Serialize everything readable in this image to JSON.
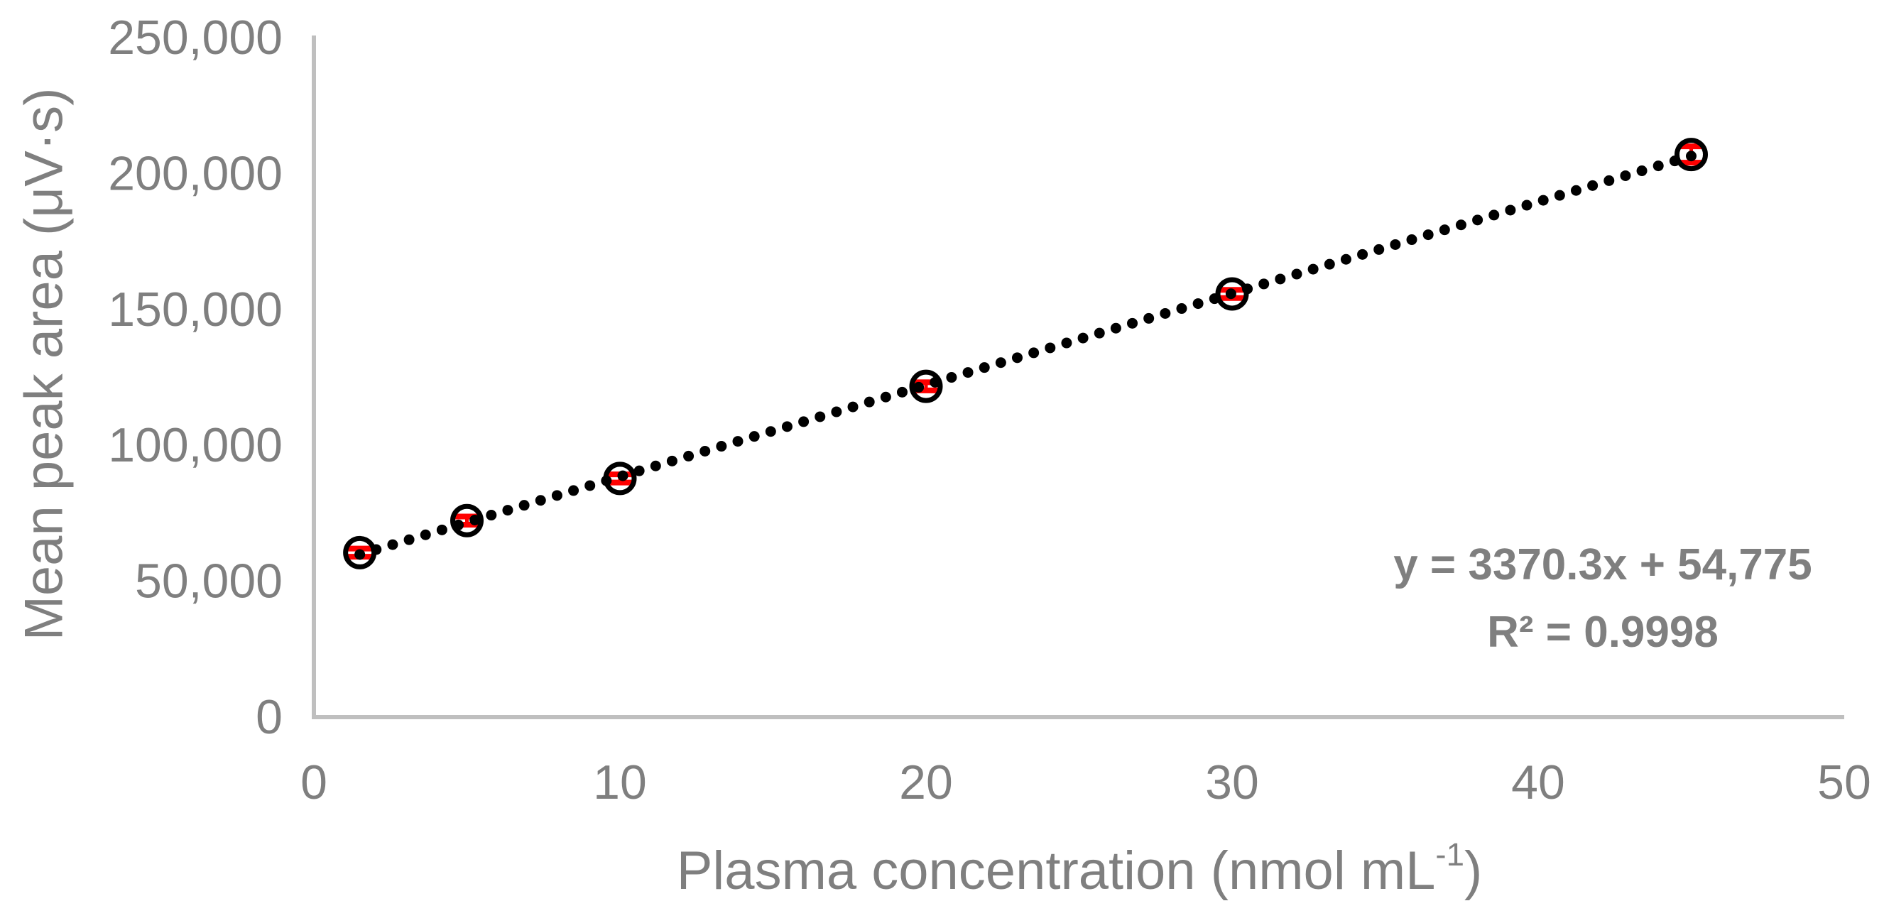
{
  "chart_data": {
    "type": "scatter",
    "title": "",
    "ylabel": "Mean peak area (μV·s)",
    "xlabel": {
      "text": "Plasma concentration (nmol mL",
      "superscript": "-1",
      "suffix": ")"
    },
    "x_ticks": [
      "0",
      "10",
      "20",
      "30",
      "40",
      "50"
    ],
    "y_ticks": [
      "0",
      "50,000",
      "100,000",
      "150,000",
      "200,000",
      "250,000"
    ],
    "xlim": [
      0,
      50
    ],
    "ylim": [
      0,
      250000
    ],
    "grid": false,
    "legend": false,
    "series": [
      {
        "name": "mean peak area",
        "marker": "open-circle",
        "points": [
          {
            "x": 1.5,
            "y": 60500,
            "yerr": 1500
          },
          {
            "x": 5,
            "y": 72300,
            "yerr": 1500
          },
          {
            "x": 10,
            "y": 87800,
            "yerr": 1500
          },
          {
            "x": 20,
            "y": 121700,
            "yerr": 1500
          },
          {
            "x": 30,
            "y": 155700,
            "yerr": 1500
          },
          {
            "x": 45,
            "y": 207000,
            "yerr": 3000
          }
        ]
      }
    ],
    "trendline": {
      "type": "linear",
      "slope": 3370.3,
      "intercept": 54775,
      "style": "dotted",
      "equation": "y = 3370.3x + 54,775",
      "r_squared": "R² = 0.9998"
    },
    "colors": {
      "marker": "#000000",
      "trendline": "#000000",
      "error_bar": "#ff0000",
      "axis": "#bfbfbf",
      "text": "#7f7f7f"
    }
  }
}
